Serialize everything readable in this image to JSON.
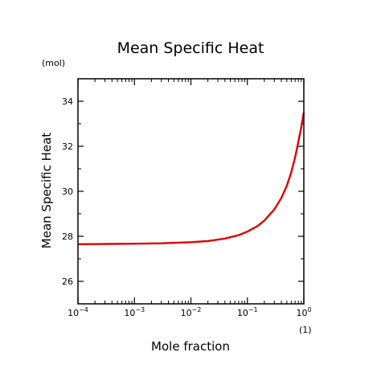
{
  "chart_data": {
    "type": "line",
    "title": "Mean Specific Heat",
    "ylabel": "Mean Specific Heat",
    "yunit": "(mol)",
    "xlabel": "Mole fraction",
    "xunit": "(1)",
    "xscale": "log",
    "xlim": [
      0.0001,
      1
    ],
    "ylim": [
      25,
      35
    ],
    "grid": false,
    "yticks": [
      26,
      28,
      30,
      32,
      34
    ],
    "xticks": [
      {
        "value": 0.0001,
        "base": "10",
        "exp": "−4"
      },
      {
        "value": 0.001,
        "base": "10",
        "exp": "−3"
      },
      {
        "value": 0.01,
        "base": "10",
        "exp": "−2"
      },
      {
        "value": 0.1,
        "base": "10",
        "exp": "−1"
      },
      {
        "value": 1,
        "base": "10",
        "exp": "0"
      }
    ],
    "series": [
      {
        "color": "#e00000",
        "x": [
          0.0001,
          0.0003,
          0.001,
          0.003,
          0.01,
          0.02,
          0.04,
          0.07,
          0.1,
          0.15,
          0.2,
          0.3,
          0.4,
          0.5,
          0.6,
          0.7,
          0.8,
          0.9,
          1.0
        ],
        "y": [
          27.65,
          27.66,
          27.67,
          27.69,
          27.74,
          27.79,
          27.9,
          28.05,
          28.21,
          28.45,
          28.7,
          29.2,
          29.7,
          30.25,
          30.85,
          31.5,
          32.2,
          32.85,
          33.5
        ]
      }
    ]
  }
}
